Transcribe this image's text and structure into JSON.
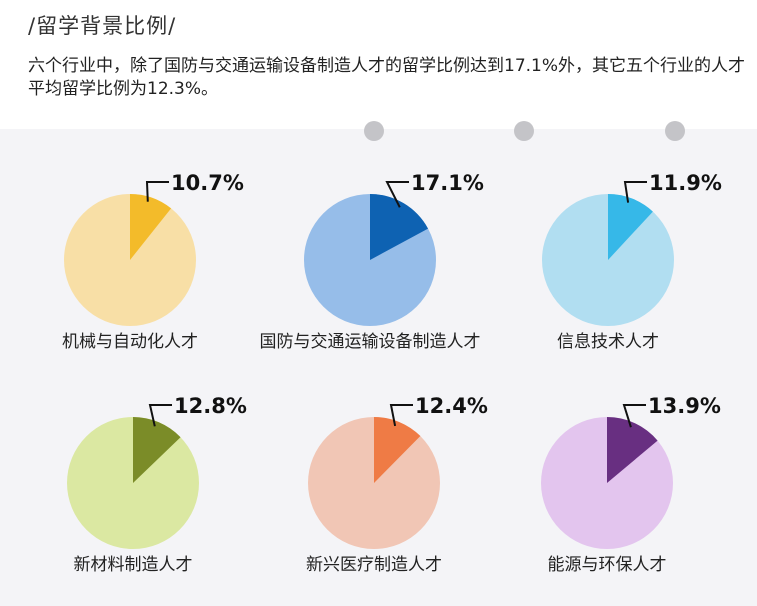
{
  "header": {
    "title": "/留学背景比例/",
    "description": "六个行业中，除了国防与交通运输设备制造人才的留学比例达到17.1%外，其它五个行业的人才平均留学比例为12.3%。"
  },
  "chart_data": {
    "type": "pie",
    "unit": "%",
    "items": [
      {
        "category": "机械与自动化人才",
        "value": 10.7,
        "label": "10.7%",
        "base_color": "#f8dfa6",
        "slice_color": "#f3bb2a"
      },
      {
        "category": "国防与交通运输设备制造人才",
        "value": 17.1,
        "label": "17.1%",
        "base_color": "#96bde9",
        "slice_color": "#0e62b2"
      },
      {
        "category": "信息技术人才",
        "value": 11.9,
        "label": "11.9%",
        "base_color": "#b1def1",
        "slice_color": "#36b8e8"
      },
      {
        "category": "新材料制造人才",
        "value": 12.8,
        "label": "12.8%",
        "base_color": "#dbe8a2",
        "slice_color": "#7b8c28"
      },
      {
        "category": "新兴医疗制造人才",
        "value": 12.4,
        "label": "12.4%",
        "base_color": "#f1c6b5",
        "slice_color": "#ef7b45"
      },
      {
        "category": "能源与环保人才",
        "value": 13.9,
        "label": "13.9%",
        "base_color": "#e3c5ee",
        "slice_color": "#682f81"
      }
    ]
  }
}
